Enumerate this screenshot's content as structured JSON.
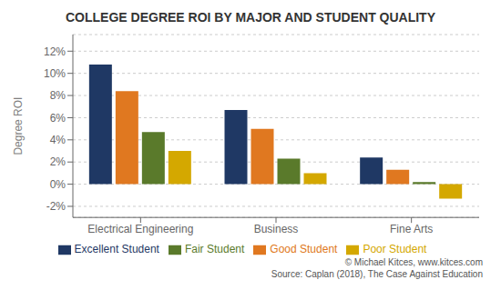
{
  "chart_data": {
    "type": "bar",
    "title": "COLLEGE DEGREE ROI BY MAJOR AND STUDENT QUALITY",
    "y_label": "Degree ROI",
    "categories": [
      "Electrical Engineering",
      "Business",
      "Fine Arts"
    ],
    "series": [
      {
        "name": "Excellent Student",
        "color": "#1f3864",
        "values": [
          0.108,
          0.067,
          0.024
        ]
      },
      {
        "name": "Good Student",
        "color": "#e07820",
        "values": [
          0.084,
          0.05,
          0.013
        ]
      },
      {
        "name": "Fair Student",
        "color": "#5a7a2b",
        "values": [
          0.047,
          0.023,
          0.002
        ]
      },
      {
        "name": "Poor Student",
        "color": "#d4a800",
        "values": [
          0.03,
          0.01,
          -0.013
        ]
      }
    ],
    "ylim": [
      -0.03,
      0.135
    ],
    "yticks": [
      {
        "value": -0.02,
        "label": "-2%"
      },
      {
        "value": 0.0,
        "label": "0%"
      },
      {
        "value": 0.02,
        "label": "2%"
      },
      {
        "value": 0.04,
        "label": "4%"
      },
      {
        "value": 0.06,
        "label": "6%"
      },
      {
        "value": 0.08,
        "label": "8%"
      },
      {
        "value": 0.1,
        "label": "10%"
      },
      {
        "value": 0.12,
        "label": "12%"
      }
    ],
    "grid": true,
    "legend": "bottom",
    "annotations": [
      "© Michael Kitces, www.kitces.com",
      "Source: Caplan (2018), The Case Against Education"
    ]
  }
}
